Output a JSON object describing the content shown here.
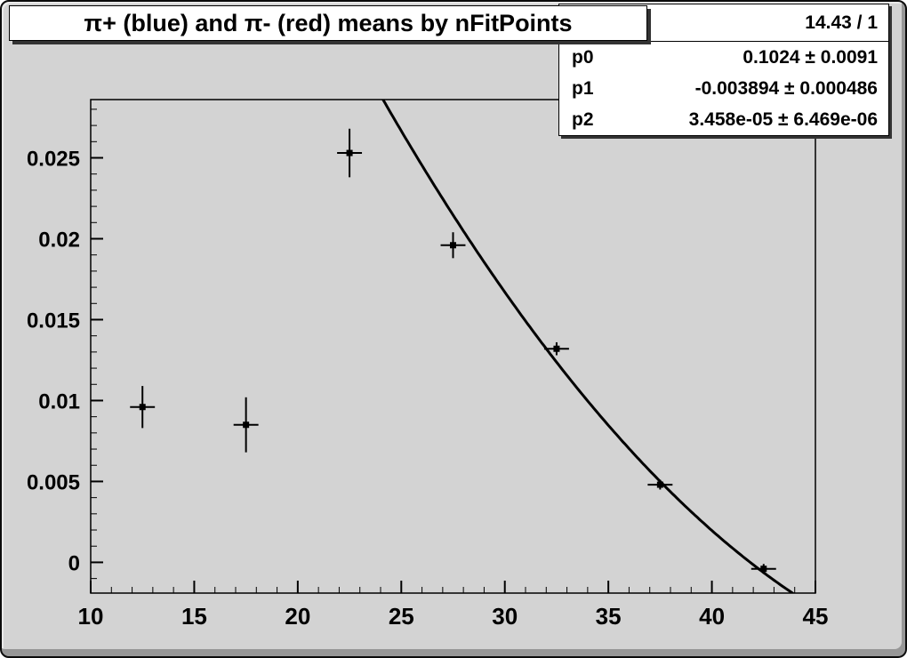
{
  "window": {
    "background_color": "#d3d3d3",
    "frame_color": "#000000"
  },
  "title_box": {
    "text": "π+ (blue) and π- (red) means by nFitPoints"
  },
  "stats_box": {
    "header": "14.43 / 1",
    "rows": [
      {
        "label": "p0",
        "value": "0.1024 ± 0.0091"
      },
      {
        "label": "p1",
        "value": "-0.003894 ± 0.000486"
      },
      {
        "label": "p2",
        "value": "3.458e-05 ± 6.469e-06"
      }
    ]
  },
  "chart_data": {
    "type": "scatter",
    "title": "π+ (blue) and π- (red) means by nFitPoints",
    "xlabel": "",
    "ylabel": "",
    "xlim": [
      10,
      45
    ],
    "ylim": [
      -0.0019,
      0.0286
    ],
    "x_ticks": [
      10,
      15,
      20,
      25,
      30,
      35,
      40,
      45
    ],
    "x_minor_step": 1,
    "y_ticks": [
      0,
      0.005,
      0.01,
      0.015,
      0.02,
      0.025
    ],
    "y_tick_labels": [
      "0",
      "0.005",
      "0.01",
      "0.015",
      "0.02",
      "0.025"
    ],
    "y_minor_step": 0.001,
    "grid": false,
    "legend": "none",
    "series": [
      {
        "name": "pi-plus-means",
        "marker": "filled-square",
        "color": "#000000",
        "points": [
          {
            "x": 12.5,
            "y": 0.0096,
            "ex": 0.6,
            "ey": 0.0013
          },
          {
            "x": 17.5,
            "y": 0.0085,
            "ex": 0.6,
            "ey": 0.0017
          },
          {
            "x": 22.5,
            "y": 0.0253,
            "ex": 0.6,
            "ey": 0.0015
          },
          {
            "x": 27.5,
            "y": 0.0196,
            "ex": 0.6,
            "ey": 0.0008
          },
          {
            "x": 32.5,
            "y": 0.0132,
            "ex": 0.6,
            "ey": 0.0004
          },
          {
            "x": 37.5,
            "y": 0.0048,
            "ex": 0.6,
            "ey": 0.0003
          },
          {
            "x": 42.5,
            "y": -0.0004,
            "ex": 0.6,
            "ey": 0.0003
          }
        ]
      }
    ],
    "fit": {
      "type": "pol2",
      "p0": 0.1024,
      "p1": -0.003894,
      "p2": 3.458e-05,
      "x_start": 24.0,
      "x_end": 44.3,
      "color": "#000000"
    }
  }
}
